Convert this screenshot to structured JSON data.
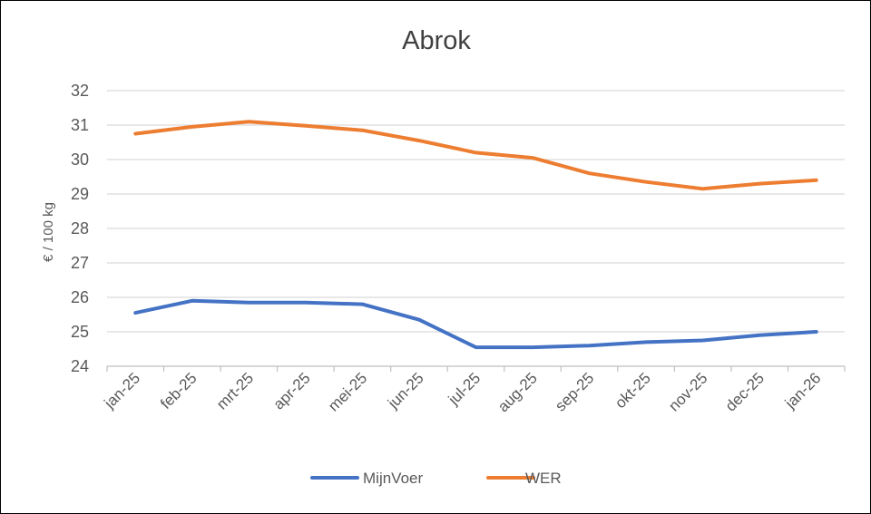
{
  "chart_data": {
    "type": "line",
    "title": "Abrok",
    "ylabel": "€ / 100 kg",
    "xlabel": "",
    "categories": [
      "jan-25",
      "feb-25",
      "mrt-25",
      "apr-25",
      "mei-25",
      "jun-25",
      "jul-25",
      "aug-25",
      "sep-25",
      "okt-25",
      "nov-25",
      "dec-25",
      "jan-26"
    ],
    "ylim": [
      24,
      32
    ],
    "yticks": [
      24,
      25,
      26,
      27,
      28,
      29,
      30,
      31,
      32
    ],
    "grid": true,
    "legend_position": "bottom",
    "series": [
      {
        "name": "MijnVoer",
        "color": "#4472C4",
        "values": [
          25.55,
          25.9,
          25.85,
          25.85,
          25.8,
          25.35,
          24.55,
          24.55,
          24.6,
          24.7,
          24.75,
          24.9,
          25.0
        ]
      },
      {
        "name": "WER",
        "color": "#ED7D31",
        "values": [
          30.75,
          30.95,
          31.1,
          30.98,
          30.85,
          30.55,
          30.2,
          30.05,
          29.6,
          29.35,
          29.15,
          29.3,
          29.4
        ]
      }
    ]
  }
}
